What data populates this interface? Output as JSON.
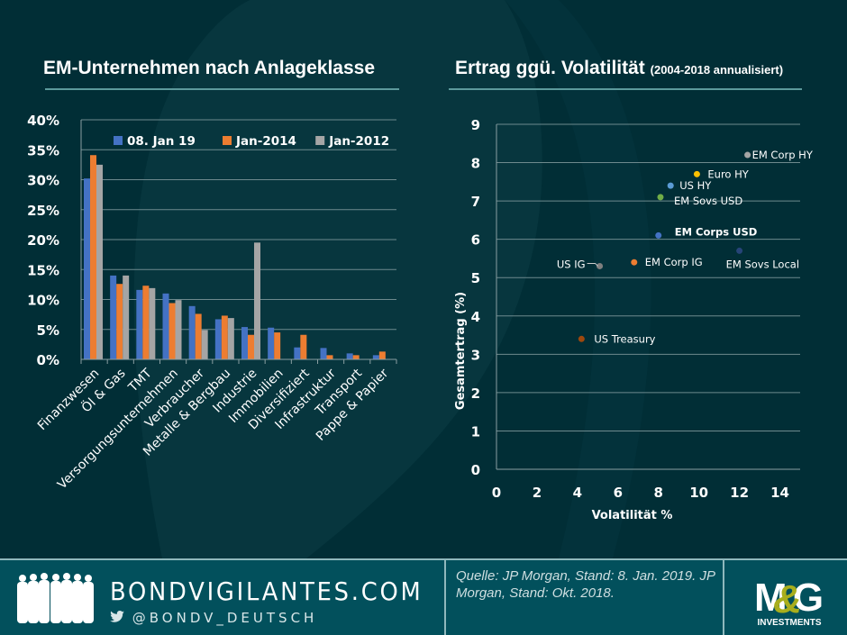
{
  "left_panel": {
    "title": "EM-Unternehmen nach Anlageklasse"
  },
  "right_panel": {
    "title": "Ertrag ggü. Volatilität",
    "subtitle": "(2004-2018 annualisiert)"
  },
  "chart_data": [
    {
      "type": "bar",
      "title": "EM-Unternehmen nach Anlageklasse",
      "xlabel": "",
      "ylabel": "",
      "ylim": [
        0,
        40
      ],
      "yticks": [
        0,
        5,
        10,
        15,
        20,
        25,
        30,
        35,
        40
      ],
      "ytick_labels": [
        "0%",
        "5%",
        "10%",
        "15%",
        "20%",
        "25%",
        "30%",
        "35%",
        "40%"
      ],
      "grid": true,
      "legend_position": "top",
      "categories": [
        "Finanzwesen",
        "Öl & Gas",
        "TMT",
        "Versorgungsunternehmen",
        "Verbraucher",
        "Metalle & Bergbau",
        "Industrie",
        "Immobilien",
        "Diversifiziert",
        "Infrastruktur",
        "Transport",
        "Pappe & Papier"
      ],
      "series": [
        {
          "name": "08. Jan 19",
          "color": "#4472c4",
          "values": [
            30.2,
            14.0,
            11.6,
            11.0,
            8.9,
            6.7,
            5.4,
            5.3,
            2.0,
            1.9,
            1.0,
            0.7
          ]
        },
        {
          "name": "Jan-2014",
          "color": "#ed7d31",
          "values": [
            34.1,
            12.6,
            12.3,
            9.4,
            7.6,
            7.3,
            4.1,
            4.5,
            4.1,
            0.7,
            0.7,
            1.3
          ]
        },
        {
          "name": "Jan-2012",
          "color": "#a5a5a5",
          "values": [
            32.5,
            14.0,
            11.9,
            9.9,
            4.9,
            6.9,
            19.5,
            null,
            null,
            null,
            null,
            null
          ]
        }
      ]
    },
    {
      "type": "scatter",
      "title": "Ertrag ggü. Volatilität (2004-2018 annualisiert)",
      "xlabel": "Volatilität %",
      "ylabel": "Gesamtertrag (%)",
      "xlim": [
        0,
        15
      ],
      "ylim": [
        0,
        9
      ],
      "xticks": [
        0,
        2,
        4,
        6,
        8,
        10,
        12,
        14
      ],
      "yticks": [
        0,
        1,
        2,
        3,
        4,
        5,
        6,
        7,
        8,
        9
      ],
      "grid": true,
      "points": [
        {
          "label": "EM Corp HY",
          "x": 12.4,
          "y": 8.2,
          "color": "#a5a5a5",
          "bold": false
        },
        {
          "label": "Euro HY",
          "x": 9.9,
          "y": 7.7,
          "color": "#ffc000",
          "bold": false
        },
        {
          "label": "US HY",
          "x": 8.6,
          "y": 7.4,
          "color": "#5b9bd5",
          "bold": false
        },
        {
          "label": "EM Sovs USD",
          "x": 8.1,
          "y": 7.1,
          "color": "#70ad47",
          "bold": false
        },
        {
          "label": "EM Corps USD",
          "x": 8.0,
          "y": 6.1,
          "color": "#4472c4",
          "bold": true
        },
        {
          "label": "EM Sovs Local",
          "x": 12.0,
          "y": 5.7,
          "color": "#264478",
          "bold": false
        },
        {
          "label": "EM Corp IG",
          "x": 6.8,
          "y": 5.4,
          "color": "#ed7d31",
          "bold": false
        },
        {
          "label": "US IG",
          "x": 5.1,
          "y": 5.3,
          "color": "#7f7f7f",
          "bold": false
        },
        {
          "label": "US Treasury",
          "x": 4.2,
          "y": 3.4,
          "color": "#9e480e",
          "bold": false
        }
      ]
    }
  ],
  "footer": {
    "brand_name": "BONDVIGILANTES.COM",
    "twitter_handle": "BONDV_DEUTSCH",
    "twitter_at": "@",
    "source_text": "Quelle: JP Morgan, Stand: 8. Jan. 2019. JP Morgan, Stand: Okt. 2018.",
    "logo_text": "M&G",
    "logo_subtext": "INVESTMENTS",
    "icons": [
      "people-silhouette-icon",
      "twitter-bird-icon"
    ]
  }
}
